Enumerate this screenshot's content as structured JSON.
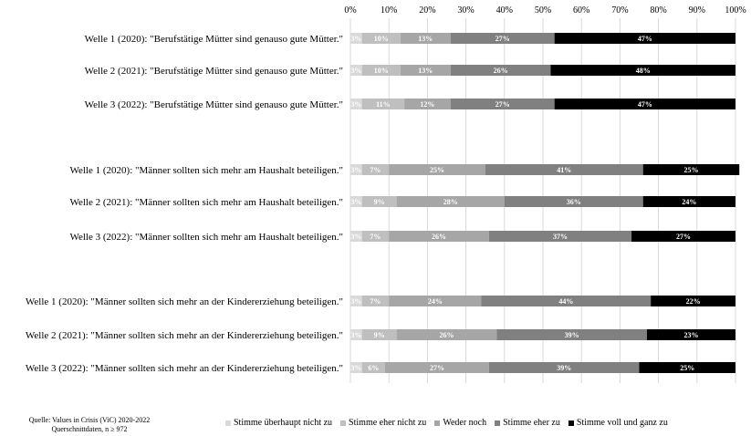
{
  "chart_data": {
    "type": "bar",
    "orientation": "horizontal",
    "stacked": true,
    "xlim": [
      0,
      100
    ],
    "xtick_labels": [
      "0%",
      "10%",
      "20%",
      "30%",
      "40%",
      "50%",
      "60%",
      "70%",
      "80%",
      "90%",
      "100%"
    ],
    "grid": true,
    "legend_position": "bottom",
    "categories": [
      "Welle 1 (2020): \"Berufstätige Mütter sind genauso gute Mütter.\"",
      "Welle 2 (2021): \"Berufstätige Mütter sind genauso gute Mütter.\"",
      "Welle 3 (2022): \"Berufstätige Mütter sind genauso gute Mütter.\"",
      "Welle 1 (2020): \"Männer sollten sich mehr am Haushalt beteiligen.\"",
      "Welle 2 (2021): \"Männer sollten sich mehr am Haushalt beteiligen.\"",
      "Welle 3 (2022): \"Männer sollten sich mehr am Haushalt beteiligen.\"",
      "Welle 1 (2020): \"Männer sollten sich mehr an der Kindererziehung beteiligen.\"",
      "Welle 2 (2021): \"Männer sollten sich mehr an der Kindererziehung beteiligen.\"",
      "Welle 3 (2022): \"Männer sollten sich mehr an der Kindererziehung beteiligen.\""
    ],
    "groups": [
      [
        0,
        1,
        2
      ],
      [
        3,
        4,
        5
      ],
      [
        6,
        7,
        8
      ]
    ],
    "series": [
      {
        "name": "Stimme überhaupt nicht zu",
        "color": "#d9d9d9",
        "values": [
          3,
          3,
          3,
          3,
          3,
          3,
          3,
          3,
          3
        ],
        "labels": [
          "3%",
          "3%",
          "3%",
          "3%",
          "3%",
          "3%",
          "3%",
          "3%",
          "3%"
        ]
      },
      {
        "name": "Stimme eher nicht zu",
        "color": "#bfbfbf",
        "values": [
          10,
          10,
          11,
          7,
          9,
          7,
          7,
          9,
          6
        ],
        "labels": [
          "10%",
          "10%",
          "11%",
          "7%",
          "9%",
          "7%",
          "7%",
          "9%",
          "6%"
        ]
      },
      {
        "name": "Weder noch",
        "color": "#a6a6a6",
        "values": [
          13,
          13,
          12,
          25,
          28,
          26,
          24,
          26,
          27
        ],
        "labels": [
          "13%",
          "13%",
          "12%",
          "25%",
          "28%",
          "26%",
          "24%",
          "26%",
          "27%"
        ]
      },
      {
        "name": "Stimme eher zu",
        "color": "#808080",
        "values": [
          27,
          26,
          27,
          41,
          36,
          37,
          44,
          39,
          39
        ],
        "labels": [
          "27%",
          "26%",
          "27%",
          "41%",
          "36%",
          "37%",
          "44%",
          "39%",
          "39%"
        ]
      },
      {
        "name": "Stimme voll und ganz zu",
        "color": "#000000",
        "values": [
          47,
          48,
          47,
          25,
          24,
          27,
          22,
          23,
          25
        ],
        "labels": [
          "47%",
          "48%",
          "47%",
          "25%",
          "24%",
          "27%",
          "22%",
          "23%",
          "25%"
        ]
      }
    ]
  },
  "source_note": {
    "line1": "Quelle: Values in Crisis (ViC) 2020-2022",
    "line2": "Querschnittdaten, n ≥ 972"
  }
}
